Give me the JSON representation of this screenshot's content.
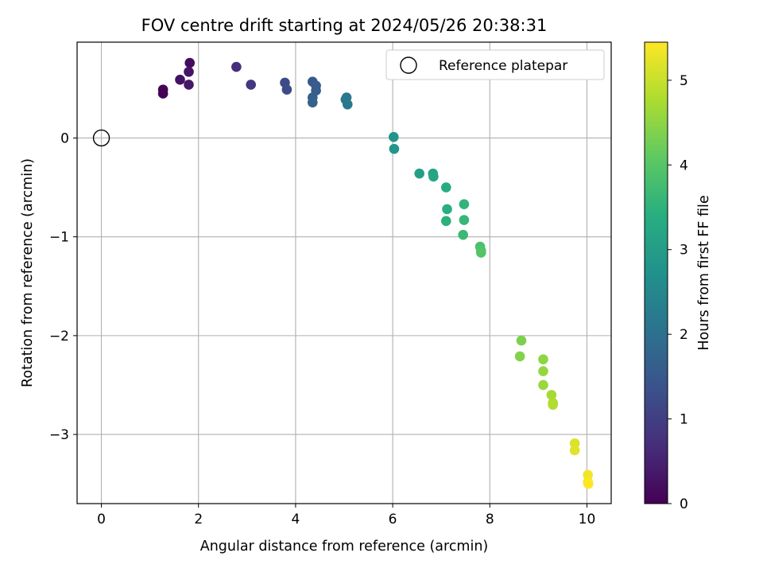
{
  "chart_data": {
    "type": "scatter",
    "title": "FOV centre drift starting at 2024/05/26 20:38:31",
    "xlabel": "Angular distance from reference (arcmin)",
    "ylabel": "Rotation from reference (arcmin)",
    "xlim": [
      -0.5,
      10.5
    ],
    "ylim": [
      -3.7,
      0.97
    ],
    "xticks": [
      0,
      2,
      4,
      6,
      8,
      10
    ],
    "yticks": [
      -3,
      -2,
      -1,
      0
    ],
    "grid": true,
    "legend": {
      "entries": [
        "Reference platepar"
      ],
      "placement": "top-right"
    },
    "reference_point": {
      "x": 0,
      "y": 0,
      "label": "Reference platepar"
    },
    "colorbar": {
      "label": "Hours from first FF file",
      "colormap": "viridis",
      "range": [
        0,
        5.45
      ],
      "ticks": [
        0,
        1,
        2,
        3,
        4,
        5
      ]
    },
    "series": [
      {
        "points": [
          {
            "x": 1.82,
            "y": 0.76,
            "c": 0.15
          },
          {
            "x": 1.27,
            "y": 0.49,
            "c": 0.05
          },
          {
            "x": 1.27,
            "y": 0.45,
            "c": 0.02
          },
          {
            "x": 1.62,
            "y": 0.59,
            "c": 0.25
          },
          {
            "x": 1.8,
            "y": 0.67,
            "c": 0.3
          },
          {
            "x": 1.8,
            "y": 0.54,
            "c": 0.35
          },
          {
            "x": 2.78,
            "y": 0.72,
            "c": 0.7
          },
          {
            "x": 3.08,
            "y": 0.54,
            "c": 0.85
          },
          {
            "x": 3.78,
            "y": 0.56,
            "c": 1.2
          },
          {
            "x": 3.82,
            "y": 0.49,
            "c": 1.25
          },
          {
            "x": 4.35,
            "y": 0.57,
            "c": 1.5
          },
          {
            "x": 4.42,
            "y": 0.53,
            "c": 1.55
          },
          {
            "x": 4.42,
            "y": 0.48,
            "c": 1.6
          },
          {
            "x": 4.35,
            "y": 0.41,
            "c": 1.65
          },
          {
            "x": 4.35,
            "y": 0.36,
            "c": 1.7
          },
          {
            "x": 5.03,
            "y": 0.39,
            "c": 2.1
          },
          {
            "x": 5.05,
            "y": 0.41,
            "c": 2.15
          },
          {
            "x": 5.07,
            "y": 0.34,
            "c": 2.2
          },
          {
            "x": 6.02,
            "y": 0.01,
            "c": 2.8
          },
          {
            "x": 6.03,
            "y": -0.11,
            "c": 2.85
          },
          {
            "x": 6.55,
            "y": -0.36,
            "c": 3.05
          },
          {
            "x": 6.83,
            "y": -0.36,
            "c": 3.15
          },
          {
            "x": 6.84,
            "y": -0.39,
            "c": 3.2
          },
          {
            "x": 7.1,
            "y": -0.5,
            "c": 3.35
          },
          {
            "x": 7.12,
            "y": -0.72,
            "c": 3.4
          },
          {
            "x": 7.1,
            "y": -0.84,
            "c": 3.45
          },
          {
            "x": 7.47,
            "y": -0.67,
            "c": 3.55
          },
          {
            "x": 7.47,
            "y": -0.83,
            "c": 3.6
          },
          {
            "x": 7.45,
            "y": -0.98,
            "c": 3.65
          },
          {
            "x": 7.8,
            "y": -1.1,
            "c": 3.85
          },
          {
            "x": 7.82,
            "y": -1.14,
            "c": 3.9
          },
          {
            "x": 7.82,
            "y": -1.16,
            "c": 3.95
          },
          {
            "x": 8.65,
            "y": -2.05,
            "c": 4.35
          },
          {
            "x": 8.62,
            "y": -2.21,
            "c": 4.4
          },
          {
            "x": 9.1,
            "y": -2.24,
            "c": 4.5
          },
          {
            "x": 9.1,
            "y": -2.36,
            "c": 4.55
          },
          {
            "x": 9.1,
            "y": -2.5,
            "c": 4.6
          },
          {
            "x": 9.27,
            "y": -2.6,
            "c": 4.7
          },
          {
            "x": 9.3,
            "y": -2.68,
            "c": 4.75
          },
          {
            "x": 9.3,
            "y": -2.7,
            "c": 4.8
          },
          {
            "x": 9.75,
            "y": -3.09,
            "c": 5.15
          },
          {
            "x": 9.75,
            "y": -3.16,
            "c": 5.2
          },
          {
            "x": 10.02,
            "y": -3.41,
            "c": 5.35
          },
          {
            "x": 10.02,
            "y": -3.48,
            "c": 5.4
          },
          {
            "x": 10.03,
            "y": -3.5,
            "c": 5.45
          }
        ]
      }
    ]
  }
}
